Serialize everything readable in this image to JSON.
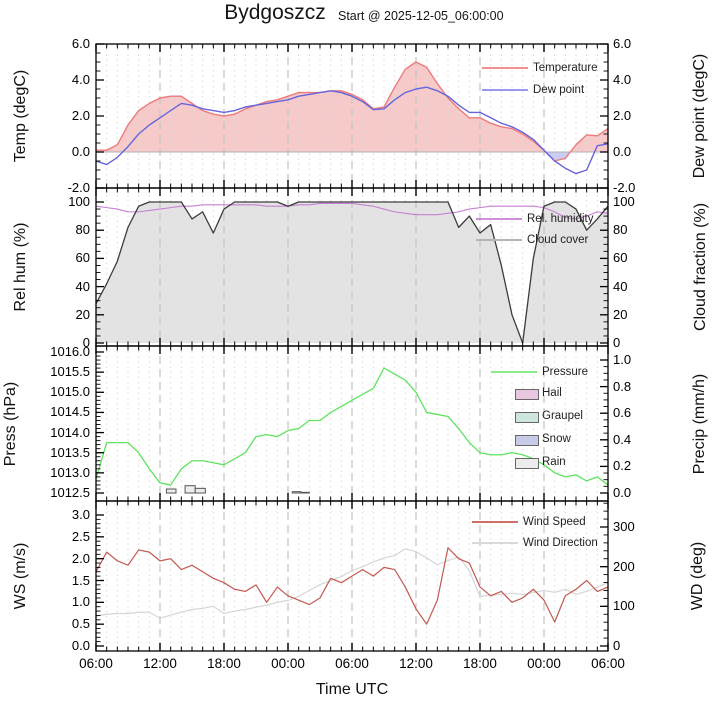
{
  "title": "Bydgoszcz",
  "subtitle": "Start @ 2025-12-05_06:00:00",
  "x_axis": {
    "title": "Time UTC",
    "tick_labels": [
      "06:00",
      "12:00",
      "18:00",
      "00:00",
      "06:00",
      "12:00",
      "18:00",
      "00:00",
      "06:00"
    ],
    "hours_span": 48
  },
  "colors": {
    "background": "#ffffff",
    "frame": "#000000",
    "grid_minor": "#dcdcdc",
    "grid_major": "#c6c6c6",
    "zero_line": "#b0b0b8"
  },
  "chart_data": [
    {
      "type": "area+line",
      "panel": "temperature_dewpoint",
      "ylabel_left": "Temp (degC)",
      "ylabel_right": "Dew point (degC)",
      "ylim": [
        -2.0,
        6.0
      ],
      "yticks": {
        "values": [
          6.0,
          4.0,
          2.0,
          0.0,
          -2.0
        ],
        "labels": [
          "6.0",
          "4.0",
          "2.0",
          "0.0",
          "-2.0"
        ]
      },
      "series": [
        {
          "name": "Temperature",
          "axis": "left",
          "color": "#ef7a7a",
          "fill_above_zero": "#f7caca",
          "fill_below_zero": "#c9cdf4",
          "values_degC": [
            0.1,
            0.1,
            0.4,
            1.5,
            2.3,
            2.7,
            3.0,
            3.1,
            3.1,
            2.7,
            2.3,
            2.1,
            2.0,
            2.1,
            2.4,
            2.6,
            2.8,
            2.9,
            3.1,
            3.3,
            3.3,
            3.3,
            3.4,
            3.4,
            3.2,
            2.9,
            2.4,
            2.5,
            3.6,
            4.6,
            5.0,
            4.7,
            3.8,
            3.0,
            2.4,
            1.9,
            1.9,
            1.6,
            1.4,
            1.3,
            1.0,
            0.6,
            0.1,
            -0.5,
            -0.35,
            0.4,
            0.95,
            0.9,
            1.3
          ]
        },
        {
          "name": "Dew point",
          "axis": "right",
          "color": "#6565dd",
          "values_degC": [
            -0.5,
            -0.7,
            -0.3,
            0.3,
            1.0,
            1.5,
            1.9,
            2.3,
            2.7,
            2.6,
            2.4,
            2.3,
            2.2,
            2.3,
            2.5,
            2.6,
            2.7,
            2.8,
            2.9,
            3.1,
            3.2,
            3.3,
            3.4,
            3.3,
            3.1,
            2.8,
            2.35,
            2.4,
            2.9,
            3.3,
            3.5,
            3.6,
            3.4,
            3.1,
            2.6,
            2.2,
            2.2,
            1.9,
            1.6,
            1.4,
            1.1,
            0.7,
            0.1,
            -0.5,
            -0.9,
            -1.2,
            -1.0,
            0.35,
            0.45
          ]
        }
      ],
      "legend": [
        {
          "label": "Temperature",
          "type": "line",
          "color": "#f09090"
        },
        {
          "label": "Dew point",
          "type": "line",
          "color": "#9898ee"
        }
      ]
    },
    {
      "type": "line+area",
      "panel": "humidity_cloud",
      "ylabel_left": "Rel hum (%)",
      "ylabel_right": "Cloud fraction (%)",
      "ylim": [
        0,
        100
      ],
      "yticks": {
        "values": [
          100,
          80,
          60,
          40,
          20,
          0
        ],
        "labels": [
          "100",
          "80",
          "60",
          "40",
          "20",
          "0"
        ]
      },
      "series": [
        {
          "name": "Rel. humidity",
          "axis": "left",
          "color": "#c77fd4",
          "values_pct": [
            97,
            96,
            95,
            93,
            93,
            94,
            95,
            96,
            97,
            97,
            98,
            98,
            98,
            98,
            98,
            98,
            97,
            97,
            97,
            98,
            98,
            99,
            99,
            99,
            99,
            98,
            97,
            95,
            93,
            92,
            91,
            91,
            91,
            92,
            93,
            95,
            96,
            97,
            97,
            97,
            97,
            97,
            96,
            93,
            89,
            88,
            90,
            93,
            92
          ]
        },
        {
          "name": "Cloud cover",
          "axis": "right",
          "color": "#3c3c3c",
          "fill": "#e3e3e3",
          "values_pct": [
            28,
            42,
            58,
            82,
            97,
            100,
            100,
            100,
            100,
            88,
            93,
            78,
            95,
            100,
            100,
            100,
            100,
            100,
            97,
            100,
            100,
            100,
            100,
            100,
            100,
            100,
            100,
            100,
            100,
            100,
            100,
            100,
            100,
            100,
            82,
            90,
            78,
            84,
            55,
            20,
            0,
            60,
            97,
            100,
            100,
            95,
            80,
            88,
            97
          ]
        }
      ],
      "legend": [
        {
          "label": "Rel. humidity",
          "type": "line",
          "color": "#cf8fdb"
        },
        {
          "label": "Cloud cover",
          "type": "line",
          "color": "#b4b4b4"
        }
      ]
    },
    {
      "type": "line+bar",
      "panel": "pressure_precip",
      "ylabel_left": "Press (hPa)",
      "ylabel_right": "Precip (mm/h)",
      "ylim_left": [
        1012.5,
        1016.0
      ],
      "ylim_right": [
        0.0,
        1.0
      ],
      "yticks_left": {
        "values": [
          1016.0,
          1015.5,
          1015.0,
          1014.5,
          1014.0,
          1013.5,
          1013.0,
          1012.5
        ],
        "labels": [
          "1016.0",
          "1015.5",
          "1015.0",
          "1014.5",
          "1014.0",
          "1013.5",
          "1013.0",
          "1012.5"
        ]
      },
      "yticks_right": {
        "values": [
          1.0,
          0.8,
          0.6,
          0.4,
          0.2,
          0.0
        ],
        "labels": [
          "1.0",
          "0.8",
          "0.6",
          "0.4",
          "0.2",
          "0.0"
        ]
      },
      "series": [
        {
          "name": "Pressure",
          "axis": "left",
          "color": "#5fe35f",
          "values_hPa": [
            1012.85,
            1013.75,
            1013.75,
            1013.75,
            1013.5,
            1013.1,
            1012.75,
            1012.7,
            1013.1,
            1013.3,
            1013.3,
            1013.25,
            1013.2,
            1013.35,
            1013.5,
            1013.9,
            1013.95,
            1013.9,
            1014.05,
            1014.1,
            1014.3,
            1014.3,
            1014.5,
            1014.65,
            1014.8,
            1014.95,
            1015.1,
            1015.6,
            1015.45,
            1015.3,
            1015.0,
            1014.5,
            1014.45,
            1014.4,
            1014.1,
            1013.75,
            1013.5,
            1013.45,
            1013.45,
            1013.5,
            1013.45,
            1013.35,
            1013.2,
            1013.0,
            1012.9,
            1012.95,
            1012.8,
            1012.9,
            1012.7
          ]
        }
      ],
      "rain_bars": {
        "name": "Rain",
        "unit": "mm/h",
        "axis": "right",
        "fill": "#ececec",
        "border": "#555555",
        "start_hour_offset": [
          6.6,
          8.35,
          9.3,
          18.4,
          19.2
        ],
        "width_hours": [
          0.9,
          0.95,
          0.95,
          0.8,
          0.8
        ],
        "values": [
          0.03,
          0.055,
          0.035,
          0.01,
          0.005
        ]
      },
      "legend": [
        {
          "label": "Pressure",
          "type": "line",
          "color": "#8aec8a"
        },
        {
          "label": "Hail",
          "type": "box",
          "fill": "#e9c7e0"
        },
        {
          "label": "Graupel",
          "type": "box",
          "fill": "#cfe6df"
        },
        {
          "label": "Snow",
          "type": "box",
          "fill": "#c7cbe8"
        },
        {
          "label": "Rain",
          "type": "box",
          "fill": "#ececec"
        }
      ]
    },
    {
      "type": "line",
      "panel": "wind",
      "ylabel_left": "WS (m/s)",
      "ylabel_right": "WD (deg)",
      "ylim_left": [
        0.0,
        3.0
      ],
      "ylim_right": [
        0,
        360
      ],
      "yticks_left": {
        "values": [
          3.0,
          2.5,
          2.0,
          1.5,
          1.0,
          0.5,
          0.0
        ],
        "labels": [
          "3.0",
          "2.5",
          "2.0",
          "1.5",
          "1.0",
          "0.5",
          "0.0"
        ]
      },
      "yticks_right": {
        "values": [
          300,
          200,
          100,
          0
        ],
        "labels": [
          "300",
          "200",
          "100",
          "0"
        ]
      },
      "series": [
        {
          "name": "Wind Speed",
          "axis": "left",
          "color": "#c25950",
          "values_m_s": [
            1.7,
            2.15,
            1.95,
            1.85,
            2.2,
            2.15,
            1.95,
            2.0,
            1.75,
            1.85,
            1.7,
            1.55,
            1.45,
            1.3,
            1.25,
            1.4,
            1.0,
            1.35,
            1.15,
            1.05,
            0.95,
            1.1,
            1.55,
            1.45,
            1.6,
            1.75,
            1.6,
            1.8,
            1.75,
            1.35,
            0.85,
            0.5,
            1.05,
            2.25,
            2.0,
            1.9,
            1.35,
            1.15,
            1.25,
            1.0,
            1.1,
            1.3,
            1.05,
            0.55,
            1.15,
            1.3,
            1.5,
            1.25,
            1.35
          ]
        },
        {
          "name": "Wind Direction",
          "axis": "right",
          "color": "#d6d6d6",
          "values_deg": [
            75,
            80,
            82,
            82,
            85,
            85,
            70,
            78,
            85,
            92,
            95,
            100,
            82,
            88,
            92,
            98,
            103,
            110,
            115,
            125,
            140,
            155,
            165,
            175,
            190,
            200,
            212,
            222,
            228,
            245,
            238,
            222,
            205,
            215,
            225,
            190,
            125,
            128,
            130,
            133,
            130,
            135,
            140,
            135,
            143,
            130,
            138,
            148,
            160
          ]
        }
      ],
      "legend": [
        {
          "label": "Wind Speed",
          "type": "line",
          "color": "#cc7068"
        },
        {
          "label": "Wind Direction",
          "type": "line",
          "color": "#d9d9d9"
        }
      ]
    }
  ]
}
